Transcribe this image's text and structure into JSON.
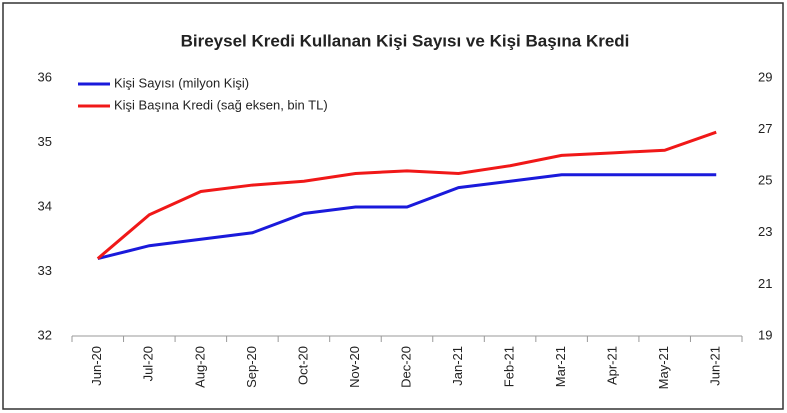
{
  "chart_data": {
    "type": "line",
    "title": "Bireysel Kredi Kullanan Kişi Sayısı ve Kişi Başına Kredi",
    "categories": [
      "Jun-20",
      "Jul-20",
      "Aug-20",
      "Sep-20",
      "Oct-20",
      "Nov-20",
      "Dec-20",
      "Jan-21",
      "Feb-21",
      "Mar-21",
      "Apr-21",
      "May-21",
      "Jun-21"
    ],
    "series": [
      {
        "name": "Kişi Sayısı (milyon Kişi)",
        "color": "#1a1adb",
        "values": [
          33.2,
          33.4,
          33.5,
          33.6,
          33.9,
          34.0,
          34.0,
          34.3,
          34.4,
          34.5,
          34.5,
          34.5,
          34.5
        ]
      },
      {
        "name": "Kişi Başına Kredi (sağ eksen, bin TL)",
        "color": "#f01818",
        "axis": "y2",
        "values": [
          22.0,
          23.7,
          24.6,
          24.85,
          25.0,
          25.3,
          25.4,
          25.3,
          25.6,
          26.0,
          26.1,
          26.2,
          26.9
        ]
      }
    ],
    "ylim": [
      32,
      36
    ],
    "yticks": [
      32,
      33,
      34,
      35,
      36
    ],
    "y2lim": [
      19,
      29
    ],
    "y2ticks": [
      19,
      21,
      23,
      25,
      27,
      29
    ],
    "legend": "upper left"
  }
}
